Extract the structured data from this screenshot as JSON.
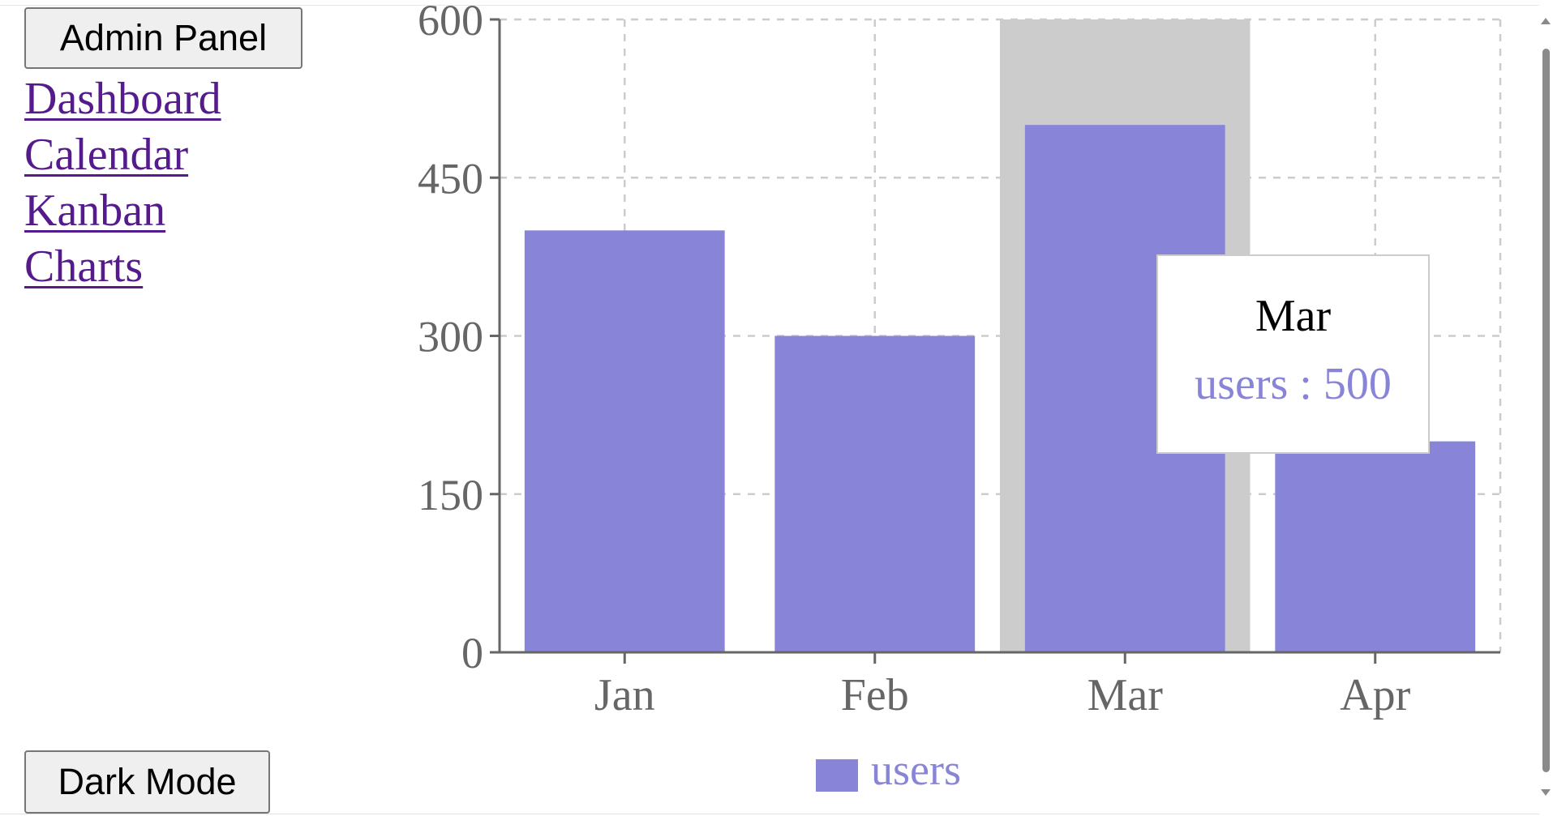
{
  "sidebar": {
    "admin_button": "Admin Panel",
    "links": [
      "Dashboard",
      "Calendar",
      "Kanban",
      "Charts"
    ],
    "dark_mode_button": "Dark Mode"
  },
  "tooltip": {
    "label": "Mar",
    "item": "users : 500"
  },
  "colors": {
    "bar": "#8884d8",
    "link": "#551a8b",
    "hover_cursor": "#cccccc"
  },
  "icons": [
    "scroll-up-arrow-icon",
    "scroll-down-arrow-icon",
    "legend-square-icon"
  ],
  "chart_data": {
    "type": "bar",
    "categories": [
      "Jan",
      "Feb",
      "Mar",
      "Apr"
    ],
    "series": [
      {
        "name": "users",
        "values": [
          400,
          300,
          500,
          200
        ]
      }
    ],
    "ylim": [
      0,
      600
    ],
    "yticks": [
      0,
      150,
      300,
      450,
      600
    ],
    "grid": true,
    "legend": "bottom-center",
    "highlighted_category": "Mar"
  }
}
